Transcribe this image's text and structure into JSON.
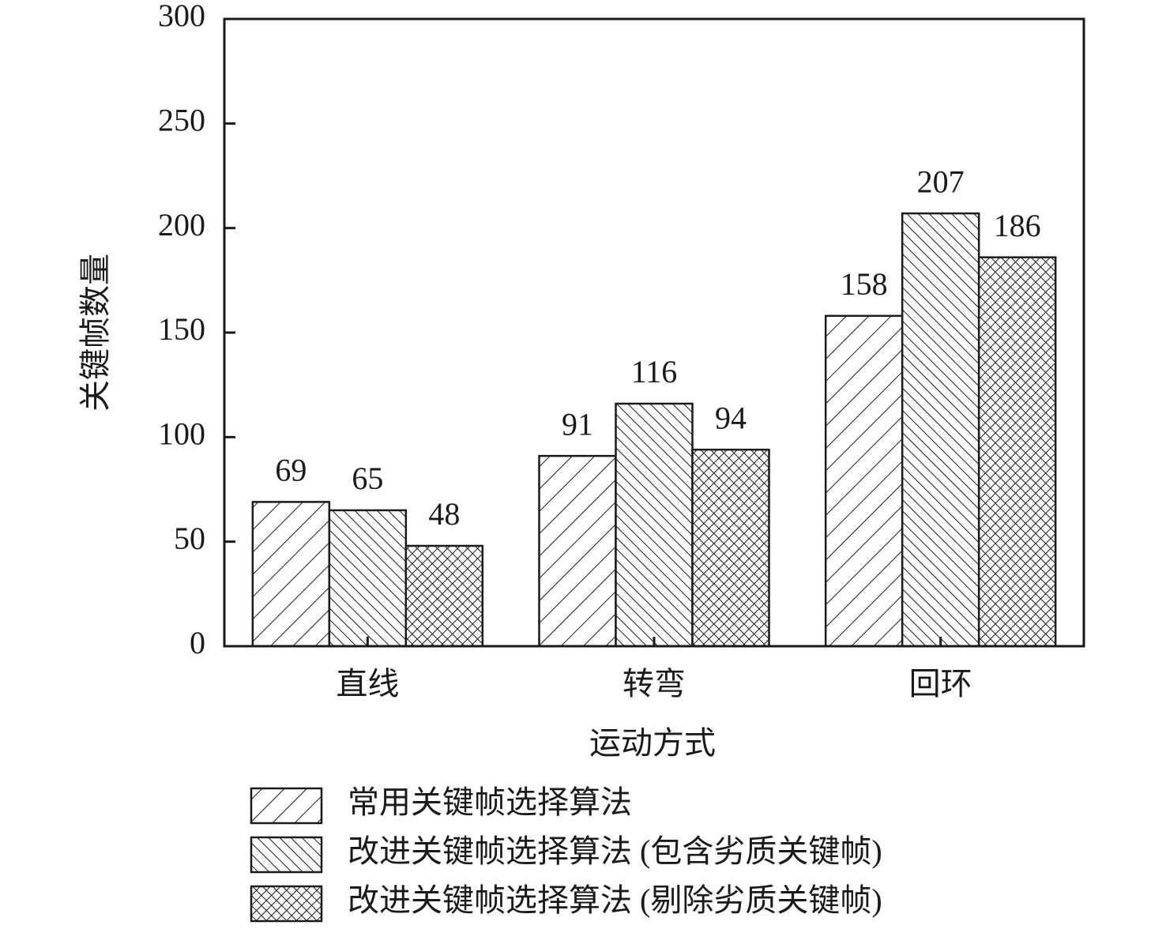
{
  "chart_data": {
    "type": "bar",
    "xlabel": "运动方式",
    "ylabel": "关键帧数量",
    "categories": [
      "直线",
      "转弯",
      "回环"
    ],
    "series": [
      {
        "name": "常用关键帧选择算法",
        "color": "#1a1a1a",
        "hatch": "/",
        "values": [
          69,
          91,
          158
        ]
      },
      {
        "name": "改进关键帧选择算法 (包含劣质关键帧)",
        "color": "#1a1a1a",
        "hatch": "\\",
        "values": [
          65,
          116,
          207
        ]
      },
      {
        "name": "改进关键帧选择算法 (剔除劣质关键帧)",
        "color": "#1a1a1a",
        "hatch": "x",
        "values": [
          48,
          94,
          186
        ]
      }
    ],
    "ylim": [
      0,
      300
    ],
    "yticks": [
      0,
      50,
      100,
      150,
      200,
      250,
      300
    ],
    "grid": false
  }
}
